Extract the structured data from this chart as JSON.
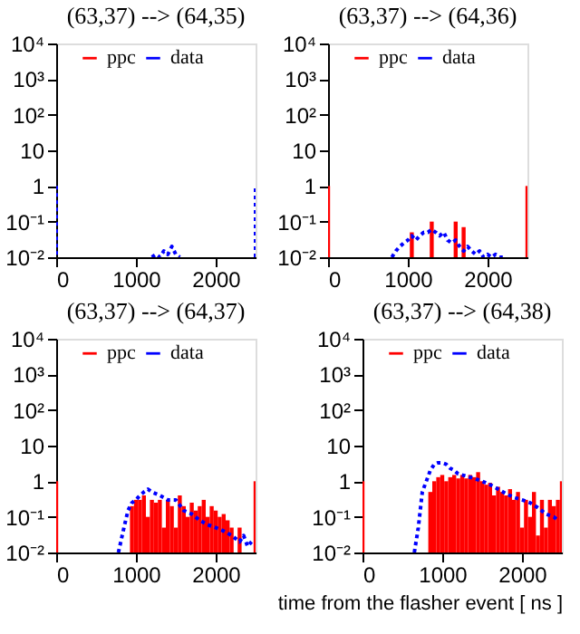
{
  "chart_data": [
    {
      "type": "bar",
      "title": "(63,37) --> (64,35)",
      "log": "y",
      "xlim": [
        0,
        2500
      ],
      "xticks": [
        0,
        1000,
        2000
      ],
      "ylim": [
        0.01,
        10000
      ],
      "yticks": [
        {
          "value": 10000,
          "label": "10⁴"
        },
        {
          "value": 1000,
          "label": "10³"
        },
        {
          "value": 100,
          "label": "10²"
        },
        {
          "value": 10,
          "label": "10"
        },
        {
          "value": 1,
          "label": "1"
        },
        {
          "value": 0.1,
          "label": "10⁻¹"
        },
        {
          "value": 0.01,
          "label": "10⁻²"
        }
      ],
      "grid": false,
      "legend": "top",
      "series": [
        {
          "name": "ppc",
          "color": "#ff0000"
        },
        {
          "name": "data",
          "type": "line",
          "line_style": "dotted",
          "color": "#0000ff",
          "x": [
            0,
            0,
            100,
            1200,
            1250,
            1300,
            1350,
            1400,
            1450,
            1500,
            1550,
            2400,
            2500,
            2500
          ],
          "values": [
            1,
            0.01,
            null,
            0.01,
            0.012,
            0.01,
            0.015,
            0.012,
            0.02,
            0.012,
            0.01,
            null,
            0.01,
            1
          ]
        }
      ]
    },
    {
      "type": "bar",
      "title": "(63,37) --> (64,36)",
      "log": "y",
      "xlim": [
        0,
        2500
      ],
      "xticks": [
        0,
        1000,
        2000
      ],
      "ylim": [
        0.01,
        10000
      ],
      "yticks": [
        {
          "value": 10000,
          "label": "10⁴"
        },
        {
          "value": 1000,
          "label": "10³"
        },
        {
          "value": 100,
          "label": "10²"
        },
        {
          "value": 10,
          "label": "10"
        },
        {
          "value": 1,
          "label": "1"
        },
        {
          "value": 0.1,
          "label": "10⁻¹"
        },
        {
          "value": 0.01,
          "label": "10⁻²"
        }
      ],
      "grid": false,
      "legend": "top",
      "series": [
        {
          "name": "ppc",
          "color": "#ff0000",
          "x": [
            0,
            1050,
            1300,
            1600,
            1700,
            2500
          ],
          "values": [
            1,
            0.05,
            0.1,
            0.1,
            0.07,
            1
          ]
        },
        {
          "name": "data",
          "type": "line",
          "line_style": "dotted",
          "color": "#0000ff",
          "x": [
            800,
            850,
            900,
            950,
            1000,
            1050,
            1100,
            1150,
            1200,
            1250,
            1300,
            1350,
            1400,
            1450,
            1500,
            1550,
            1600,
            1650,
            1700,
            1750,
            1800,
            1850,
            1900,
            1950,
            2000,
            2050,
            2100,
            2150,
            2200
          ],
          "values": [
            0.01,
            0.015,
            0.02,
            0.025,
            0.03,
            0.04,
            0.03,
            0.04,
            0.05,
            0.05,
            0.06,
            0.05,
            0.04,
            0.05,
            0.03,
            0.025,
            0.03,
            0.02,
            0.015,
            0.02,
            0.015,
            0.012,
            0.015,
            0.01,
            0.012,
            0.01,
            0.012,
            0.01,
            0.01
          ]
        }
      ]
    },
    {
      "type": "bar",
      "title": "(63,37) --> (64,37)",
      "log": "y",
      "xlim": [
        0,
        2500
      ],
      "xticks": [
        0,
        1000,
        2000
      ],
      "ylim": [
        0.01,
        10000
      ],
      "yticks": [
        {
          "value": 10000,
          "label": "10⁴"
        },
        {
          "value": 1000,
          "label": "10³"
        },
        {
          "value": 100,
          "label": "10²"
        },
        {
          "value": 10,
          "label": "10"
        },
        {
          "value": 1,
          "label": "1"
        },
        {
          "value": 0.1,
          "label": "10⁻¹"
        },
        {
          "value": 0.01,
          "label": "10⁻²"
        }
      ],
      "grid": false,
      "legend": "top",
      "series": [
        {
          "name": "ppc",
          "color": "#ff0000",
          "x": [
            0,
            950,
            1000,
            1050,
            1100,
            1150,
            1200,
            1250,
            1300,
            1350,
            1400,
            1450,
            1500,
            1550,
            1600,
            1650,
            1700,
            1750,
            1800,
            1850,
            1900,
            1950,
            2000,
            2050,
            2100,
            2150,
            2200,
            2300,
            2500
          ],
          "values": [
            1,
            0.2,
            0.3,
            0.3,
            0.4,
            0.1,
            0.3,
            0.25,
            0.3,
            0.05,
            0.3,
            0.2,
            0.05,
            0.4,
            0.2,
            0.1,
            0.25,
            0.15,
            0.2,
            0.3,
            0.1,
            0.2,
            0.15,
            0.1,
            0.12,
            0.08,
            0.05,
            0.05,
            1
          ]
        },
        {
          "name": "data",
          "type": "line",
          "line_style": "dotted",
          "color": "#0000ff",
          "x": [
            780,
            850,
            900,
            950,
            1000,
            1050,
            1100,
            1150,
            1200,
            1300,
            1400,
            1500,
            1600,
            1700,
            1800,
            1900,
            2000,
            2100,
            2200,
            2300,
            2350,
            2400,
            2450
          ],
          "values": [
            0.01,
            0.05,
            0.15,
            0.25,
            0.3,
            0.4,
            0.5,
            0.6,
            0.5,
            0.4,
            0.3,
            0.3,
            0.15,
            0.12,
            0.08,
            0.06,
            0.05,
            0.04,
            0.03,
            0.02,
            0.03,
            0.015,
            0.02
          ]
        }
      ]
    },
    {
      "type": "bar",
      "title": "(63,37) --> (64,38)",
      "xlabel": "time from the flasher event [ ns ]",
      "log": "y",
      "xlim": [
        0,
        2500
      ],
      "xticks": [
        0,
        1000,
        2000
      ],
      "ylim": [
        0.01,
        10000
      ],
      "yticks": [
        {
          "value": 10000,
          "label": "10⁴"
        },
        {
          "value": 1000,
          "label": "10³"
        },
        {
          "value": 100,
          "label": "10²"
        },
        {
          "value": 10,
          "label": "10"
        },
        {
          "value": 1,
          "label": "1"
        },
        {
          "value": 0.1,
          "label": "10⁻¹"
        },
        {
          "value": 0.01,
          "label": "10⁻²"
        }
      ],
      "grid": false,
      "legend": "top",
      "series": [
        {
          "name": "ppc",
          "color": "#ff0000",
          "x": [
            0,
            850,
            900,
            950,
            1000,
            1050,
            1100,
            1150,
            1200,
            1250,
            1300,
            1350,
            1400,
            1450,
            1500,
            1550,
            1600,
            1650,
            1700,
            1750,
            1800,
            1850,
            1900,
            1950,
            2000,
            2050,
            2100,
            2150,
            2200,
            2250,
            2300,
            2350,
            2400,
            2450,
            2500
          ],
          "values": [
            1,
            0.5,
            1,
            1.3,
            1.5,
            1,
            1.3,
            1.5,
            1.2,
            1.5,
            1.2,
            1.5,
            1.3,
            1.8,
            1,
            0.8,
            0.9,
            0.4,
            0.7,
            0.5,
            0.4,
            0.6,
            0.3,
            0.5,
            0.05,
            0.3,
            0.1,
            0.5,
            0.03,
            0.3,
            0.05,
            0.3,
            0.2,
            0.3,
            1
          ]
        },
        {
          "name": "data",
          "type": "line",
          "line_style": "dotted",
          "color": "#0000ff",
          "x": [
            650,
            700,
            750,
            800,
            850,
            900,
            950,
            1000,
            1050,
            1100,
            1150,
            1200,
            1300,
            1400,
            1500,
            1600,
            1700,
            1800,
            1900,
            2000,
            2100,
            2200,
            2300,
            2400,
            2450
          ],
          "values": [
            0.01,
            0.05,
            0.5,
            1,
            2,
            3,
            3.3,
            3.3,
            3,
            2.3,
            2,
            1.6,
            1.4,
            1.2,
            1,
            0.8,
            0.6,
            0.45,
            0.35,
            0.3,
            0.25,
            0.18,
            0.12,
            0.1,
            0.08
          ]
        }
      ]
    }
  ]
}
